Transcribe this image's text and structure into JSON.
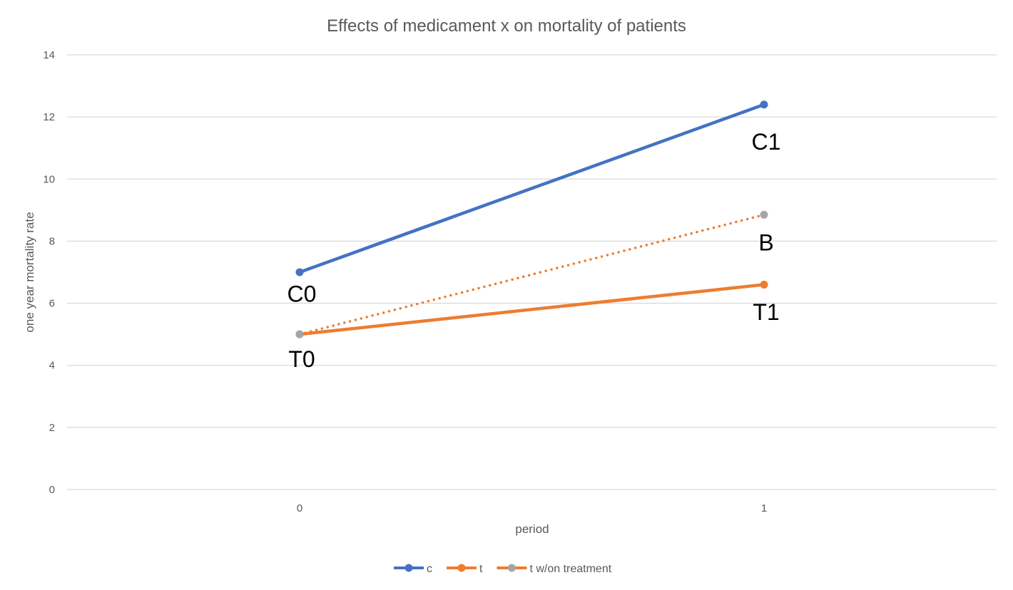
{
  "chart_data": {
    "type": "line",
    "title": "Effects of medicament x on mortality of patients",
    "xlabel": "period",
    "ylabel": "one year mortality rate",
    "x": [
      0,
      1
    ],
    "x_tick_labels": [
      "0",
      "1"
    ],
    "ylim": [
      0,
      14
    ],
    "y_ticks": [
      0,
      2,
      4,
      6,
      8,
      10,
      12,
      14
    ],
    "grid": true,
    "legend_position": "bottom",
    "series": [
      {
        "name": "c",
        "values": [
          7.0,
          12.4
        ],
        "color": "#4472C4",
        "dash": "solid"
      },
      {
        "name": "t",
        "values": [
          5.0,
          6.6
        ],
        "color": "#ED7D31",
        "dash": "solid"
      },
      {
        "name": "t w/on treatment",
        "values": [
          5.0,
          8.85
        ],
        "color": "#ED7D31",
        "marker_color": "#A5A5A5",
        "dash": "dotted"
      }
    ],
    "annotations": [
      {
        "text": "C0",
        "x": 0,
        "y": 6.3
      },
      {
        "text": "T0",
        "x": 0,
        "y": 4.2
      },
      {
        "text": "C1",
        "x": 1,
        "y": 11.2
      },
      {
        "text": "B",
        "x": 1,
        "y": 7.95
      },
      {
        "text": "T1",
        "x": 1,
        "y": 5.72
      }
    ]
  }
}
